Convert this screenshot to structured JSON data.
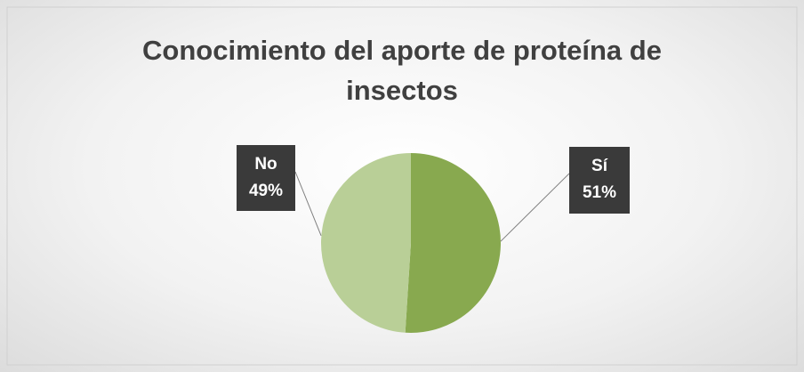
{
  "chart_data": {
    "type": "pie",
    "title": "Conocimiento del aporte de proteína de insectos",
    "categories": [
      "Sí",
      "No"
    ],
    "values": [
      51,
      49
    ],
    "value_labels": [
      "51%",
      "49%"
    ],
    "colors": [
      "#88a94f",
      "#b9cf97"
    ]
  }
}
